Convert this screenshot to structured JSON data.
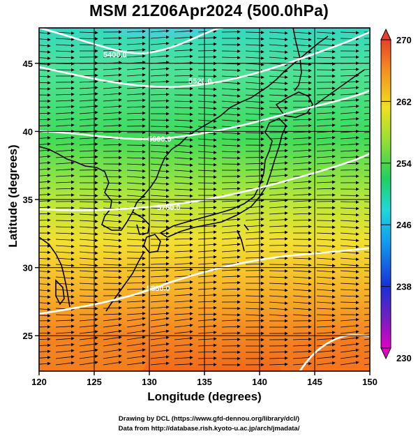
{
  "title": "MSM 21Z06Apr2024 (500.0hPa)",
  "axes": {
    "xlabel": "Longitude (degrees)",
    "ylabel": "Latitude  (degrees)",
    "x_ticks": [
      "120",
      "125",
      "130",
      "135",
      "140",
      "145",
      "150"
    ],
    "y_ticks": [
      "25",
      "30",
      "35",
      "40",
      "45"
    ]
  },
  "colorbar": {
    "min": 230,
    "max": 270,
    "labels": [
      "270",
      "262",
      "254",
      "246",
      "238",
      "230"
    ]
  },
  "contours": [
    {
      "label": "5400.0"
    },
    {
      "label": "5520.0"
    },
    {
      "label": "5600.0"
    },
    {
      "label": "5760.0"
    },
    {
      "label": "5880.0"
    }
  ],
  "credits": {
    "line1": "Drawing by DCL (https://www.gfd-dennou.org/library/dcl/)",
    "line2": "Data from http://database.rish.kyoto-u.ac.jp/arch/jmadata/"
  },
  "chart_data": {
    "type": "heatmap",
    "title": "MSM 21Z06Apr2024 (500.0hPa)",
    "xlabel": "Longitude (degrees)",
    "ylabel": "Latitude  (degrees)",
    "xlim": [
      120,
      150
    ],
    "ylim": [
      22.4,
      47.6
    ],
    "colorbar_range": [
      230,
      270
    ],
    "field": "temperature with streamlines and geopotential height contours",
    "approx_temperature_by_latitude": [
      {
        "lat": 23,
        "value": 266
      },
      {
        "lat": 28,
        "value": 264
      },
      {
        "lat": 32,
        "value": 261
      },
      {
        "lat": 36,
        "value": 257
      },
      {
        "lat": 40,
        "value": 254
      },
      {
        "lat": 44,
        "value": 252
      },
      {
        "lat": 47.5,
        "value": 249
      }
    ],
    "streamline_direction": "westerly (west to east)",
    "contour_values": [
      5400,
      5520,
      5600,
      5760,
      5880
    ]
  }
}
